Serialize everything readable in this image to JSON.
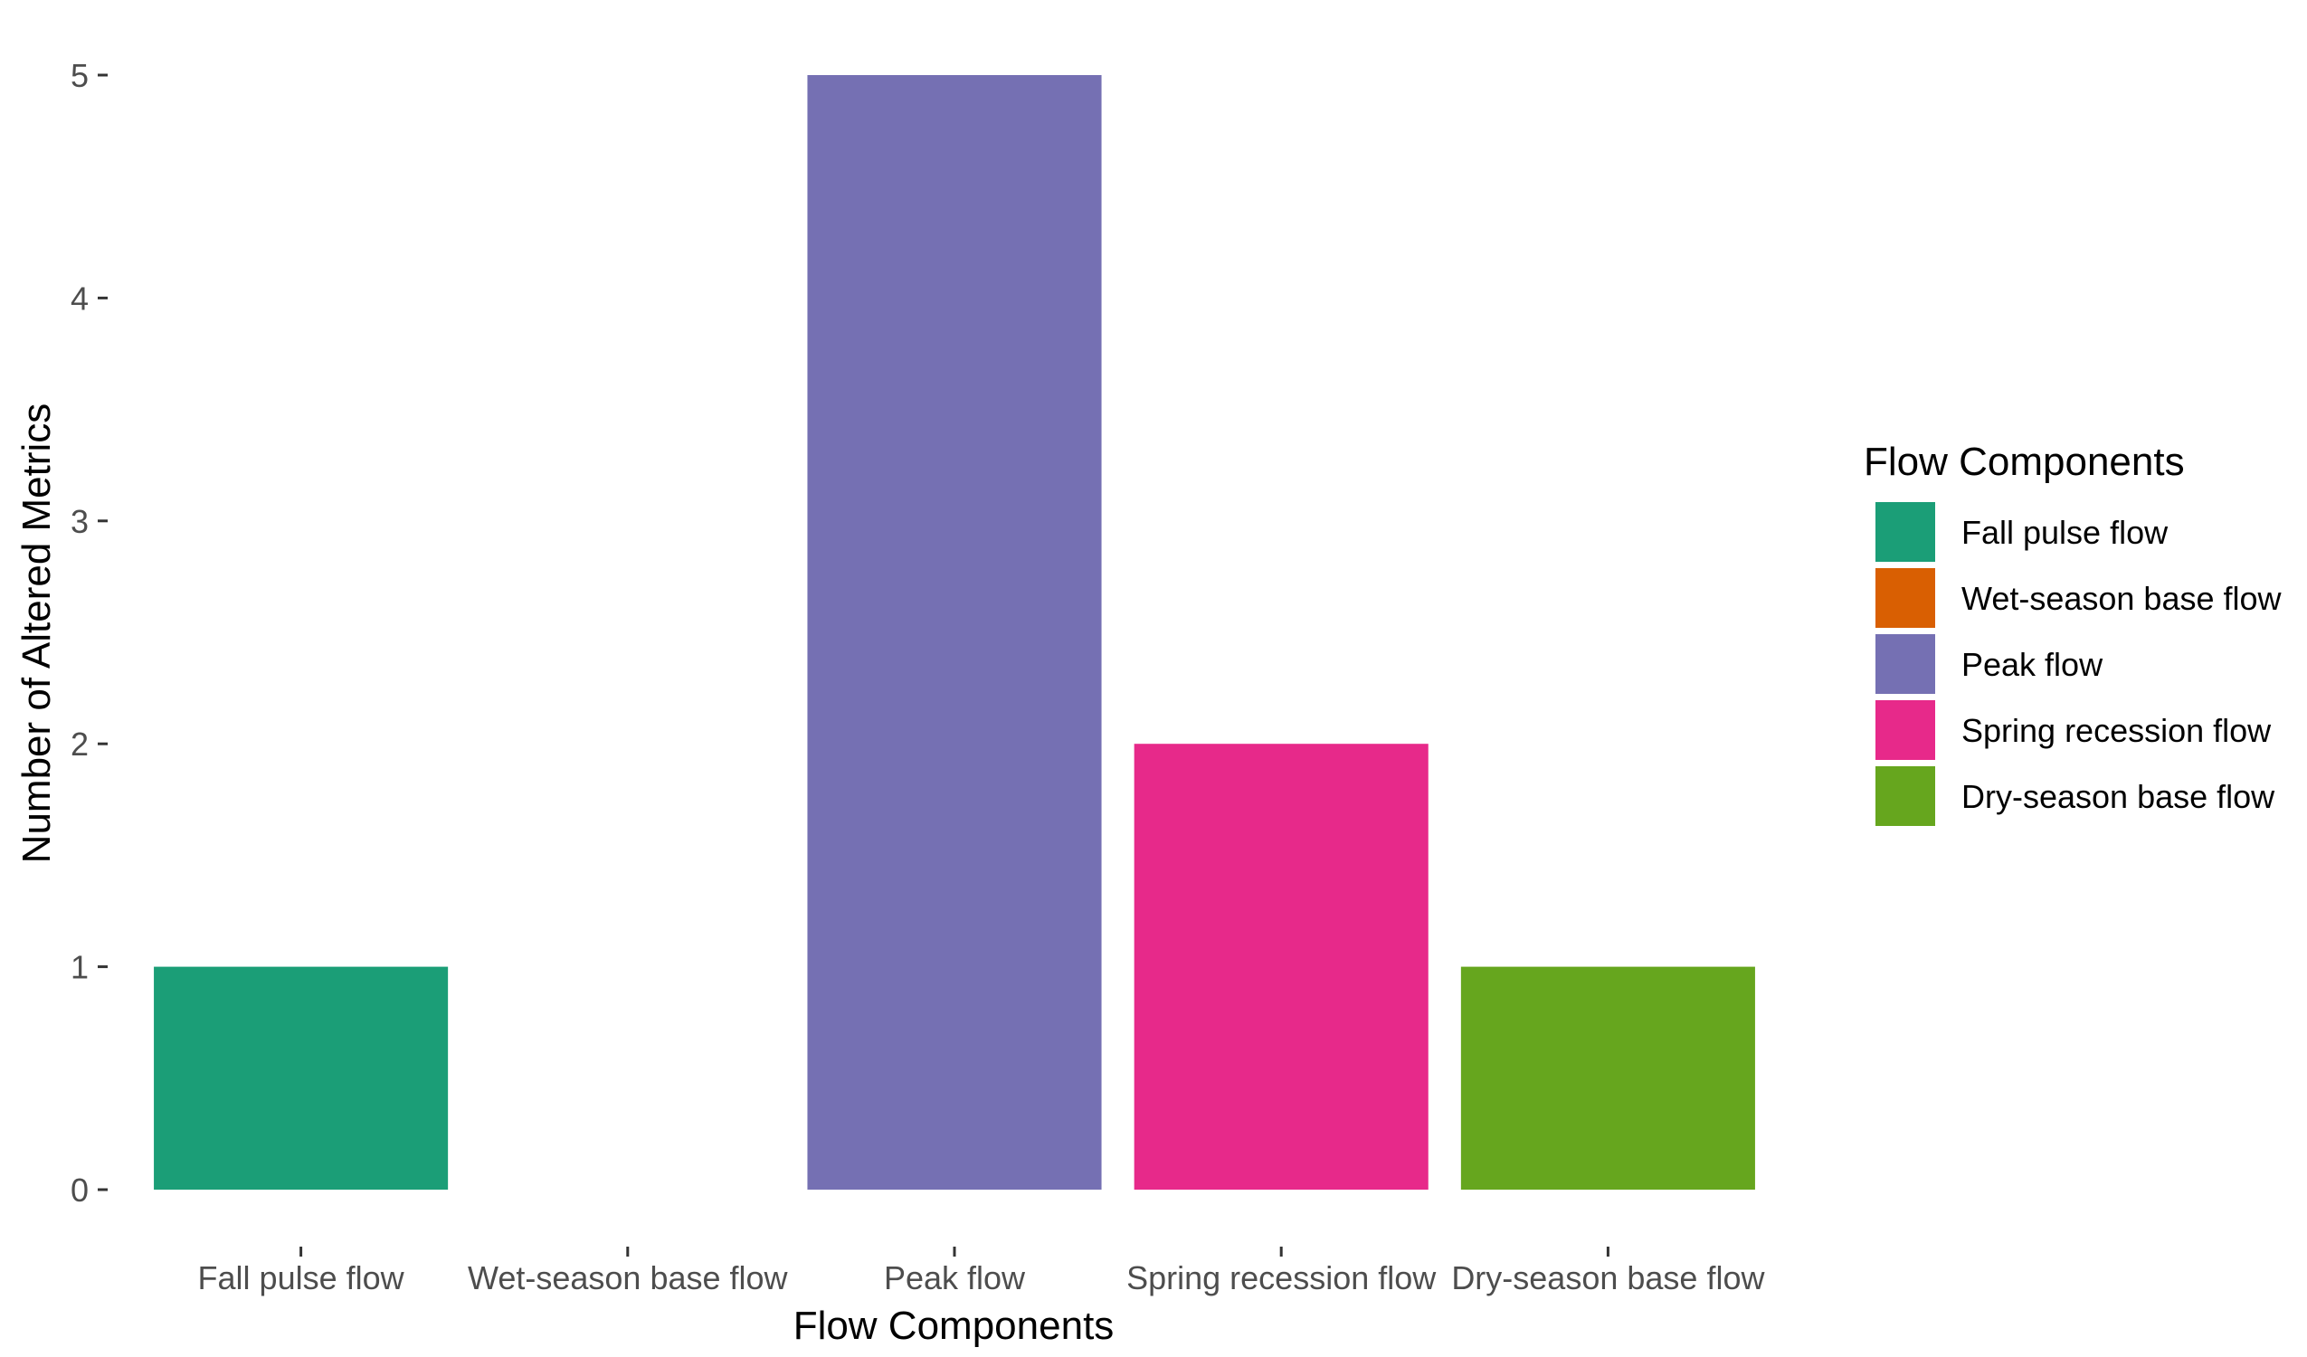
{
  "chart_data": {
    "type": "bar",
    "title": "",
    "xlabel": "Flow Components",
    "ylabel": "Number of Altered Metrics",
    "ylim": [
      0,
      5
    ],
    "yticks": [
      0,
      1,
      2,
      3,
      4,
      5
    ],
    "grid": false,
    "legend_position": "right",
    "legend_title": "Flow Components",
    "categories": [
      "Fall pulse flow",
      "Wet-season base flow",
      "Peak flow",
      "Spring recession flow",
      "Dry-season base flow"
    ],
    "values": [
      1,
      0,
      5,
      2,
      1
    ],
    "colors": [
      "#1b9e77",
      "#d95f02",
      "#7570b3",
      "#e7298a",
      "#66a61e"
    ]
  }
}
